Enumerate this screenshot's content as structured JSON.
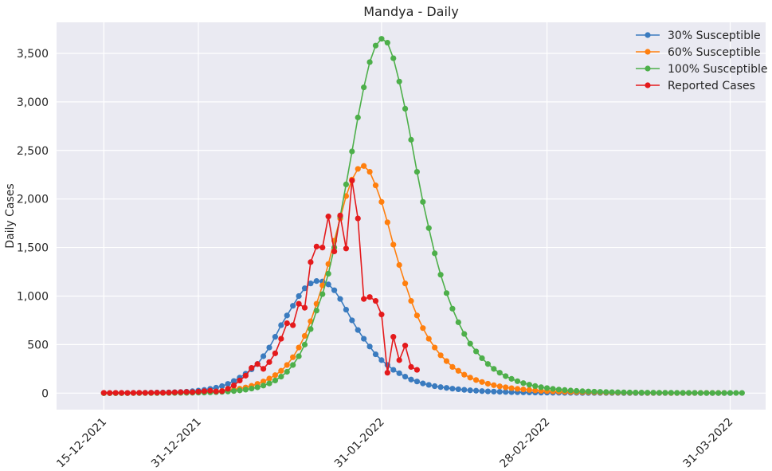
{
  "chart_data": {
    "type": "line",
    "title": "Mandya - Daily",
    "xlabel": "",
    "ylabel": "Daily Cases",
    "x_start": "15-12-2021",
    "x_step_days": 1,
    "x_ticks": [
      "15-12-2021",
      "31-12-2021",
      "31-01-2022",
      "28-02-2022",
      "31-03-2022"
    ],
    "y_ticks": [
      0,
      500,
      1000,
      1500,
      2000,
      2500,
      3000,
      3500
    ],
    "y_tick_labels": [
      "0",
      "500",
      "1,000",
      "1,500",
      "2,000",
      "2,500",
      "3,000",
      "3,500"
    ],
    "ylim": [
      -170,
      3820
    ],
    "xlim": [
      "07-12-2021",
      "06-04-2022"
    ],
    "grid": true,
    "legend_position": "top-right",
    "series": [
      {
        "name": "30% Susceptible",
        "color": "#3a7bbf",
        "values": [
          1,
          1,
          1,
          2,
          2,
          3,
          3,
          4,
          5,
          6,
          7,
          8,
          10,
          12,
          15,
          20,
          26,
          33,
          44,
          56,
          72,
          95,
          125,
          160,
          200,
          245,
          300,
          380,
          470,
          580,
          700,
          800,
          900,
          1000,
          1080,
          1130,
          1155,
          1150,
          1120,
          1060,
          970,
          860,
          750,
          650,
          560,
          480,
          400,
          340,
          290,
          240,
          205,
          170,
          140,
          120,
          100,
          85,
          72,
          62,
          54,
          46,
          40,
          34,
          29,
          25,
          21,
          18,
          16,
          14,
          12,
          10,
          9,
          8,
          7,
          6,
          5,
          5,
          4,
          4,
          3,
          3,
          3,
          2,
          2,
          2,
          2,
          2,
          2,
          2,
          1,
          1,
          1,
          1,
          1,
          1,
          1,
          1,
          1,
          1,
          1,
          1,
          1,
          1,
          1,
          1,
          1,
          1,
          1
        ]
      },
      {
        "name": "60% Susceptible",
        "color": "#ff7f0e",
        "values": [
          0,
          0,
          0,
          1,
          1,
          1,
          1,
          2,
          2,
          2,
          3,
          3,
          4,
          5,
          6,
          7,
          9,
          11,
          14,
          17,
          22,
          28,
          36,
          46,
          58,
          75,
          95,
          120,
          150,
          185,
          230,
          290,
          370,
          470,
          590,
          740,
          920,
          1110,
          1330,
          1570,
          1800,
          2030,
          2200,
          2310,
          2340,
          2280,
          2140,
          1970,
          1760,
          1530,
          1320,
          1130,
          950,
          800,
          670,
          560,
          470,
          390,
          330,
          270,
          230,
          190,
          160,
          135,
          115,
          97,
          82,
          70,
          60,
          51,
          44,
          38,
          33,
          28,
          24,
          21,
          18,
          16,
          14,
          12,
          11,
          10,
          9,
          8,
          7,
          6,
          6,
          5,
          5,
          4,
          4,
          4,
          3,
          3,
          3,
          3,
          2,
          2,
          2,
          2,
          2,
          2,
          2,
          2,
          2,
          2
        ]
      },
      {
        "name": "100% Susceptible",
        "color": "#4daf4a",
        "values": [
          0,
          0,
          0,
          0,
          0,
          1,
          1,
          1,
          1,
          1,
          2,
          2,
          2,
          3,
          3,
          4,
          5,
          6,
          8,
          10,
          13,
          17,
          22,
          28,
          36,
          47,
          60,
          78,
          100,
          130,
          170,
          220,
          290,
          380,
          500,
          660,
          850,
          1020,
          1230,
          1500,
          1820,
          2150,
          2490,
          2840,
          3150,
          3410,
          3580,
          3650,
          3610,
          3450,
          3210,
          2930,
          2610,
          2280,
          1970,
          1700,
          1440,
          1220,
          1030,
          870,
          730,
          610,
          510,
          430,
          360,
          300,
          250,
          210,
          175,
          147,
          123,
          103,
          87,
          73,
          61,
          52,
          44,
          37,
          32,
          27,
          23,
          20,
          17,
          15,
          13,
          11,
          10,
          9,
          8,
          7,
          6,
          6,
          5,
          5,
          4,
          4,
          4,
          3,
          3,
          3,
          3,
          2,
          2,
          2,
          2,
          2,
          2,
          2,
          2
        ]
      },
      {
        "name": "Reported Cases",
        "color": "#e41a1c",
        "values": [
          3,
          2,
          3,
          3,
          2,
          3,
          4,
          3,
          4,
          5,
          4,
          6,
          8,
          10,
          12,
          10,
          15,
          20,
          25,
          18,
          20,
          45,
          80,
          130,
          180,
          260,
          300,
          250,
          320,
          410,
          560,
          720,
          700,
          920,
          880,
          1350,
          1510,
          1500,
          1820,
          1460,
          1830,
          1490,
          2190,
          1800,
          970,
          990,
          950,
          810,
          210,
          580,
          340,
          490,
          270,
          240
        ]
      }
    ]
  }
}
